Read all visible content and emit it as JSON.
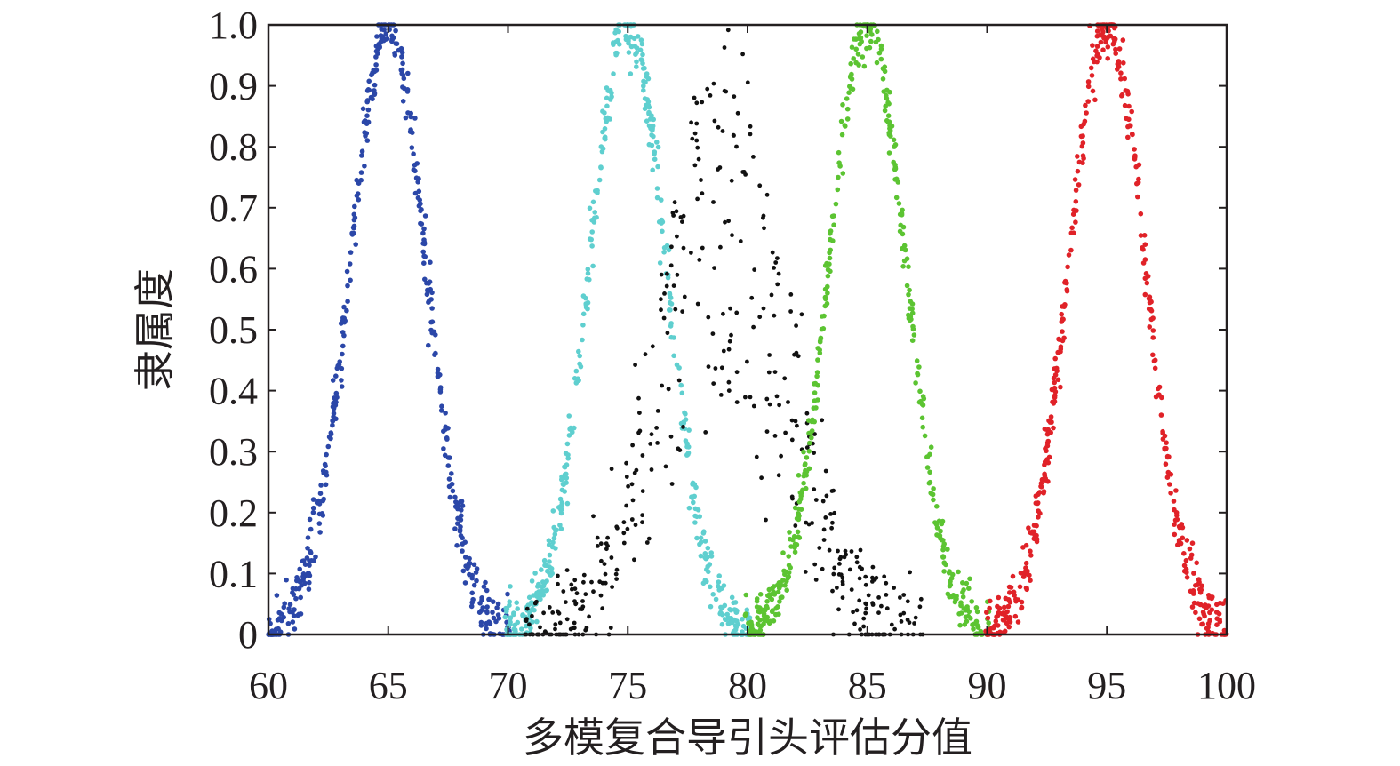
{
  "chart_data": {
    "type": "scatter",
    "title": "",
    "xlabel": "多模复合导引头评估分值",
    "ylabel": "隶属度",
    "xlim": [
      60,
      100
    ],
    "ylim": [
      0,
      1.0
    ],
    "x_ticks": [
      60,
      65,
      70,
      75,
      80,
      85,
      90,
      95,
      100
    ],
    "x_tick_labels": [
      "60",
      "65",
      "70",
      "75",
      "80",
      "85",
      "90",
      "95",
      "100"
    ],
    "y_ticks": [
      0,
      0.1,
      0.2,
      0.3,
      0.4,
      0.5,
      0.6,
      0.7,
      0.8,
      0.9,
      1.0
    ],
    "y_tick_labels": [
      "0",
      "0.1",
      "0.2",
      "0.3",
      "0.4",
      "0.5",
      "0.6",
      "0.7",
      "0.8",
      "0.9",
      "1.0"
    ],
    "grid": false,
    "legend": "none",
    "series": [
      {
        "color": "#2b47a8",
        "center": 65,
        "sigma": 1.6,
        "points": 460
      },
      {
        "color": "#5fcfcf",
        "center": 75,
        "sigma": 1.6,
        "points": 460
      },
      {
        "color": "#111111",
        "center": 79,
        "sigma": 2.6,
        "points": 420,
        "scattered": true
      },
      {
        "color": "#5cc432",
        "center": 85,
        "sigma": 1.6,
        "points": 460
      },
      {
        "color": "#e02228",
        "center": 95,
        "sigma": 1.6,
        "points": 460
      }
    ]
  }
}
